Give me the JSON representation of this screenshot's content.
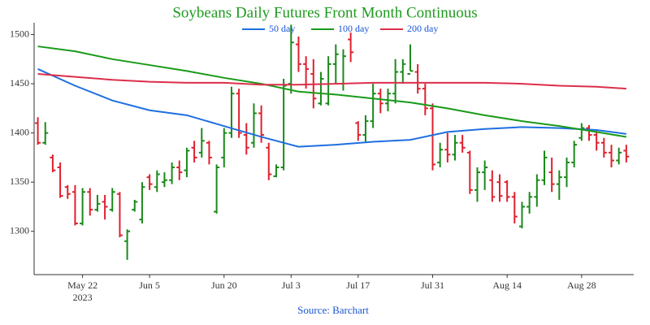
{
  "chart_data": {
    "type": "ohlc",
    "title": "Soybeans Daily Futures Front Month Continuous",
    "source": "Source: Barchart",
    "year": "2023",
    "xlim": [
      -0.5,
      80
    ],
    "ylim": [
      1256,
      1512
    ],
    "yticks": [
      1300,
      1350,
      1400,
      1450,
      1500
    ],
    "xticks": [
      {
        "value": 6,
        "label": "May 22"
      },
      {
        "value": 15,
        "label": "Jun 5"
      },
      {
        "value": 25,
        "label": "Jun 20"
      },
      {
        "value": 34,
        "label": "Jul 3"
      },
      {
        "value": 43,
        "label": "Jul 17"
      },
      {
        "value": 53,
        "label": "Jul 31"
      },
      {
        "value": 63,
        "label": "Aug 14"
      },
      {
        "value": 73,
        "label": "Aug 28"
      }
    ],
    "up_color": "#1a8a1a",
    "down_color": "#e0202e",
    "grid": false,
    "legend": "top",
    "ohlc": {
      "x": [
        0,
        1,
        2,
        3,
        4,
        5,
        6,
        7,
        8,
        9,
        10,
        11,
        12,
        13,
        14,
        15,
        16,
        17,
        18,
        19,
        20,
        21,
        22,
        23,
        24,
        25,
        26,
        27,
        28,
        29,
        30,
        31,
        32,
        33,
        34,
        35,
        36,
        37,
        38,
        39,
        40,
        41,
        42,
        43,
        44,
        45,
        46,
        47,
        48,
        49,
        50,
        51,
        52,
        53,
        54,
        55,
        56,
        57,
        58,
        59,
        60,
        61,
        62,
        63,
        64,
        65,
        66,
        67,
        68,
        69,
        70,
        71,
        72,
        73,
        74,
        75,
        76,
        77,
        78,
        79
      ],
      "open": [
        1410,
        1390,
        1375,
        1365,
        1345,
        1340,
        1308,
        1340,
        1322,
        1330,
        1322,
        1338,
        1290,
        1322,
        1312,
        1355,
        1345,
        1350,
        1352,
        1365,
        1362,
        1385,
        1380,
        1390,
        1320,
        1375,
        1400,
        1440,
        1398,
        1390,
        1420,
        1385,
        1356,
        1365,
        1450,
        1490,
        1470,
        1460,
        1430,
        1430,
        1470,
        1450,
        1495,
        1410,
        1398,
        1412,
        1440,
        1430,
        1440,
        1462,
        1460,
        1462,
        1445,
        1425,
        1370,
        1383,
        1378,
        1390,
        1380,
        1342,
        1360,
        1352,
        1350,
        1350,
        1335,
        1305,
        1325,
        1335,
        1352,
        1360,
        1348,
        1355,
        1370,
        1395,
        1405,
        1398,
        1390,
        1380,
        1372,
        1382
      ],
      "high": [
        1416,
        1411,
        1378,
        1370,
        1347,
        1347,
        1344,
        1344,
        1337,
        1337,
        1344,
        1340,
        1302,
        1332,
        1350,
        1358,
        1362,
        1360,
        1370,
        1372,
        1385,
        1392,
        1405,
        1392,
        1368,
        1405,
        1447,
        1445,
        1410,
        1430,
        1428,
        1390,
        1368,
        1455,
        1510,
        1498,
        1478,
        1475,
        1462,
        1478,
        1490,
        1485,
        1502,
        1412,
        1418,
        1450,
        1445,
        1445,
        1475,
        1475,
        1490,
        1470,
        1450,
        1430,
        1390,
        1400,
        1398,
        1398,
        1382,
        1365,
        1372,
        1362,
        1358,
        1352,
        1340,
        1330,
        1340,
        1358,
        1382,
        1375,
        1362,
        1375,
        1392,
        1410,
        1408,
        1402,
        1395,
        1388,
        1385,
        1388
      ],
      "low": [
        1388,
        1388,
        1360,
        1334,
        1333,
        1306,
        1306,
        1316,
        1320,
        1312,
        1320,
        1294,
        1271,
        1320,
        1308,
        1342,
        1340,
        1345,
        1348,
        1352,
        1355,
        1370,
        1375,
        1368,
        1318,
        1365,
        1395,
        1395,
        1378,
        1385,
        1390,
        1352,
        1355,
        1362,
        1440,
        1462,
        1445,
        1425,
        1428,
        1428,
        1450,
        1443,
        1472,
        1392,
        1390,
        1405,
        1420,
        1422,
        1430,
        1450,
        1463,
        1440,
        1418,
        1362,
        1365,
        1370,
        1372,
        1380,
        1338,
        1330,
        1342,
        1330,
        1330,
        1330,
        1308,
        1303,
        1318,
        1325,
        1347,
        1340,
        1332,
        1345,
        1365,
        1392,
        1392,
        1382,
        1375,
        1365,
        1368,
        1370
      ],
      "close": [
        1390,
        1400,
        1362,
        1336,
        1338,
        1308,
        1340,
        1322,
        1328,
        1325,
        1340,
        1296,
        1300,
        1330,
        1345,
        1348,
        1358,
        1352,
        1365,
        1360,
        1382,
        1375,
        1392,
        1375,
        1365,
        1400,
        1440,
        1400,
        1385,
        1420,
        1398,
        1358,
        1365,
        1448,
        1492,
        1470,
        1465,
        1435,
        1455,
        1470,
        1480,
        1478,
        1482,
        1398,
        1412,
        1440,
        1430,
        1440,
        1462,
        1470,
        1463,
        1445,
        1425,
        1368,
        1383,
        1378,
        1390,
        1385,
        1342,
        1360,
        1365,
        1335,
        1336,
        1335,
        1315,
        1325,
        1335,
        1352,
        1375,
        1348,
        1355,
        1370,
        1388,
        1405,
        1398,
        1390,
        1380,
        1372,
        1380,
        1376
      ]
    },
    "series": [
      {
        "name": "50 day",
        "color": "#1f6fe0",
        "x": [
          0,
          5,
          10,
          15,
          20,
          25,
          30,
          35,
          40,
          45,
          50,
          55,
          60,
          65,
          70,
          75,
          79
        ],
        "values": [
          1465,
          1448,
          1433,
          1423,
          1418,
          1407,
          1396,
          1386,
          1388,
          1391,
          1393,
          1401,
          1404,
          1406,
          1405,
          1403,
          1399
        ]
      },
      {
        "name": "100 day",
        "color": "#1a9a1a",
        "x": [
          0,
          5,
          10,
          15,
          20,
          25,
          30,
          35,
          40,
          45,
          50,
          55,
          60,
          65,
          70,
          75,
          79
        ],
        "values": [
          1488,
          1483,
          1475,
          1469,
          1463,
          1456,
          1450,
          1442,
          1439,
          1435,
          1431,
          1425,
          1418,
          1412,
          1407,
          1401,
          1396
        ]
      },
      {
        "name": "200 day",
        "color": "#dc2f4a",
        "x": [
          0,
          5,
          10,
          15,
          20,
          25,
          30,
          35,
          40,
          45,
          50,
          55,
          60,
          65,
          70,
          75,
          79
        ],
        "values": [
          1460,
          1457,
          1454,
          1452,
          1451,
          1451,
          1449,
          1449,
          1450,
          1451,
          1451,
          1451,
          1451,
          1450,
          1448,
          1447,
          1445
        ]
      }
    ]
  }
}
